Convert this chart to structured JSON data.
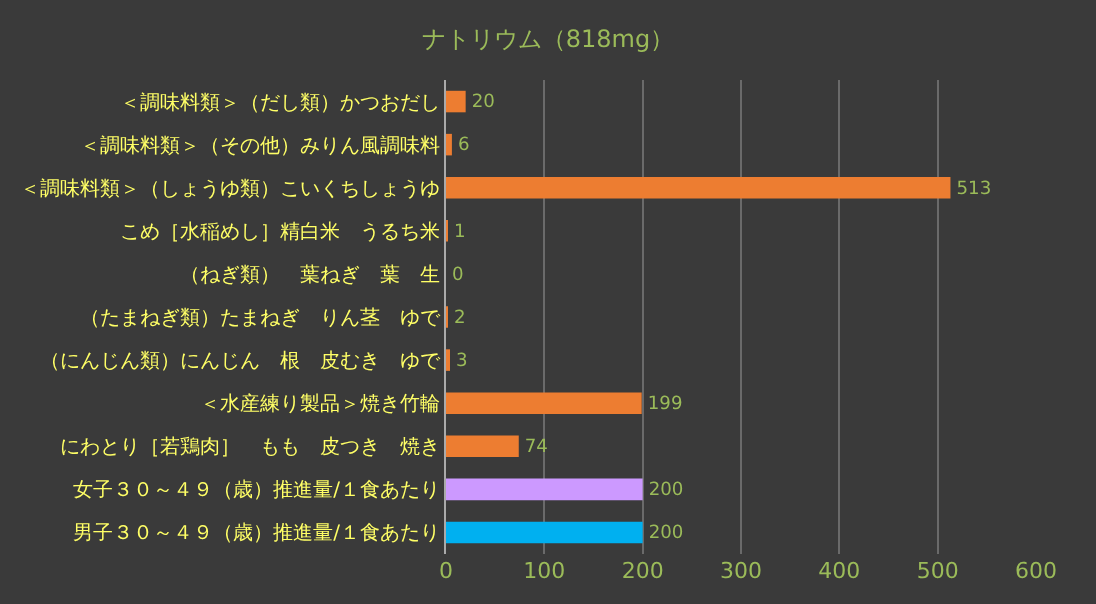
{
  "chart_data": {
    "type": "bar",
    "orientation": "horizontal",
    "title": "ナトリウム（818mg）",
    "categories": [
      "＜調味料類＞（だし類）かつおだし",
      "＜調味料類＞（その他）みりん風調味料",
      "＜調味料類＞（しょうゆ類）こいくちしょうゆ",
      "こめ［水稲めし］精白米　うるち米",
      "（ねぎ類）　葉ねぎ　葉　生",
      "（たまねぎ類）たまねぎ　りん茎　ゆで",
      "（にんじん類）にんじん　根　皮むき　ゆで",
      "＜水産練り製品＞焼き竹輪",
      "にわとり［若鶏肉］　もも　皮つき　焼き",
      "女子３０～４９（歳）推進量/１食あたり",
      "男子３０～４９（歳）推進量/１食あたり"
    ],
    "values": [
      20,
      6,
      513,
      1,
      0,
      2,
      3,
      199,
      74,
      200,
      200
    ],
    "colors": [
      "#ed7d31",
      "#ed7d31",
      "#ed7d31",
      "#ed7d31",
      "#ed7d31",
      "#ed7d31",
      "#ed7d31",
      "#ed7d31",
      "#ed7d31",
      "#cc99ff",
      "#00b0f0"
    ],
    "xlim": [
      0,
      600
    ],
    "xticks": [
      0,
      100,
      200,
      300,
      400,
      500,
      600
    ],
    "grid": "x",
    "data_labels": true
  }
}
